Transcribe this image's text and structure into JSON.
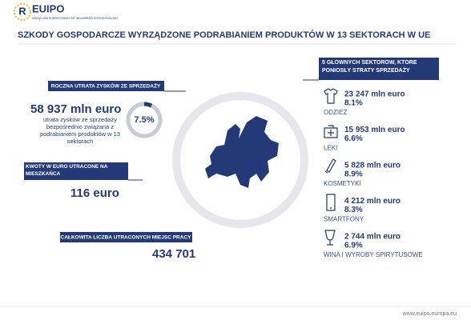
{
  "header": {
    "logo": "EUIPO",
    "logo_sub": "URZĄD UNII EUROPEJSKIEJ DS. WŁASNOŚCI INTELEKTUALNEJ",
    "title": "SZKODY GOSPODARCZE WYRZĄDZONE PODRABIANIEM PRODUKTÓW W 13 SEKTORACH W UE"
  },
  "annual_loss": {
    "label": "ROCZNA UTRATA ZYSKÓW ZE SPRZEDAŻY",
    "amount": "58 937 mln euro",
    "description": "utrata zysków ze sprzedaży bezpośrednio związana z podrabianiem produktów w 13 sektorach",
    "rate": {
      "value": 7.5,
      "label": "7.5%"
    }
  },
  "per_capita": {
    "label": "KWOTY W EURO UTRACONE NA MIESZKAŃCA",
    "amount": "116 euro"
  },
  "jobs": {
    "label": "CAŁKOWITA LICZBA UTRACONYCH MIEJSC PRACY",
    "amount": "434 701"
  },
  "sectors": {
    "heading": "5 GŁÓWNYCH SEKTORÓW, KTÓRE PONIOSŁY STRATY SPRZEDAŻY",
    "items": [
      {
        "amount": "23 247 mln euro",
        "rate": "8.1%",
        "name": "ODZIEŻ"
      },
      {
        "amount": "15 953 mln euro",
        "rate": "6.6%",
        "name": "LEKI"
      },
      {
        "amount": "5 828 mln euro",
        "rate": "8.9%",
        "name": "KOSMETYKI"
      },
      {
        "amount": "4 212 mln euro",
        "rate": "8.3%",
        "name": "SMARTFONY"
      },
      {
        "amount": "2 744 mln euro",
        "rate": "6.9%",
        "name": "WINA I WYROBY SPIRYTUSOWE"
      }
    ]
  },
  "footer": {
    "url": "www.euipo.europa.eu"
  }
}
